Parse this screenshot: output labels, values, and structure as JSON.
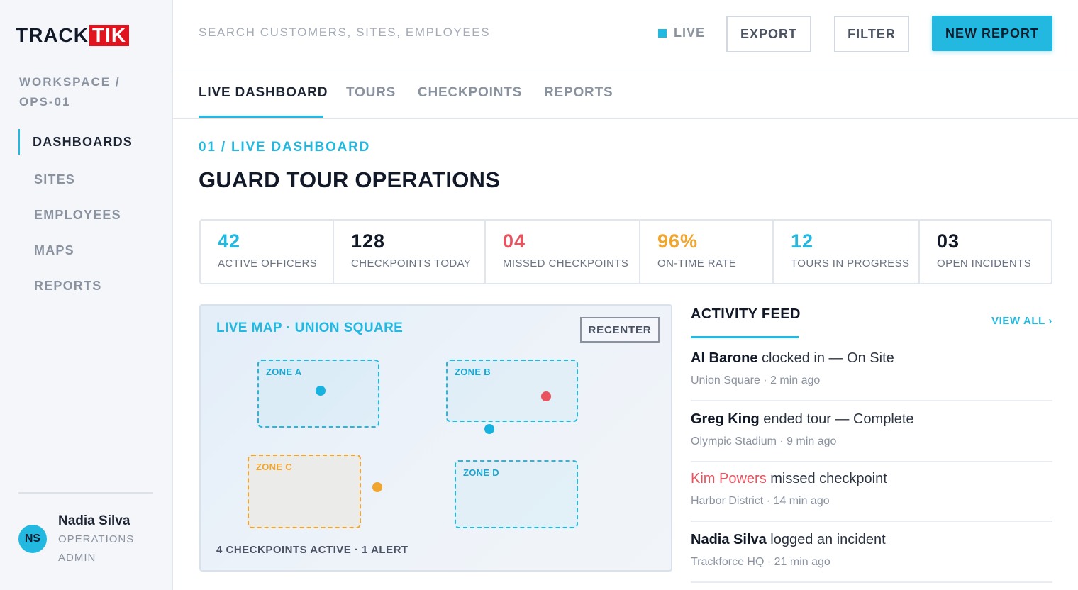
{
  "brand": {
    "logo_part1": "TRACK",
    "logo_part2": "TIK",
    "accent": "#22b8e0",
    "logo_red": "#e0141e"
  },
  "sidebar": {
    "workspace": "WORKSPACE / OPS-01",
    "items": [
      {
        "label": "DASHBOARDS",
        "active": true
      },
      {
        "label": "SITES"
      },
      {
        "label": "EMPLOYEES"
      },
      {
        "label": "MAPS"
      },
      {
        "label": "REPORTS"
      }
    ],
    "user": {
      "initials": "NS",
      "name": "Nadia Silva",
      "role": "OPERATIONS ADMIN"
    }
  },
  "topbar": {
    "search_placeholder": "SEARCH CUSTOMERS, SITES, EMPLOYEES",
    "live_label": "LIVE",
    "export_label": "EXPORT",
    "filter_label": "FILTER",
    "new_report_label": "NEW REPORT"
  },
  "tabs": [
    {
      "label": "LIVE DASHBOARD",
      "active": true
    },
    {
      "label": "TOURS"
    },
    {
      "label": "CHECKPOINTS"
    },
    {
      "label": "REPORTS"
    }
  ],
  "header": {
    "breadcrumb": "01 / LIVE DASHBOARD",
    "title": "GUARD TOUR OPERATIONS"
  },
  "stats": [
    {
      "value": "42",
      "label": "ACTIVE OFFICERS",
      "color": "#22b8e0"
    },
    {
      "value": "128",
      "label": "CHECKPOINTS TODAY",
      "color": "#111827"
    },
    {
      "value": "04",
      "label": "MISSED CHECKPOINTS",
      "color": "#e8535f"
    },
    {
      "value": "96%",
      "label": "ON-TIME RATE",
      "color": "#f0a52e"
    },
    {
      "value": "12",
      "label": "TOURS IN PROGRESS",
      "color": "#22b8e0"
    },
    {
      "value": "03",
      "label": "OPEN INCIDENTS",
      "color": "#111827"
    }
  ],
  "map": {
    "title": "LIVE MAP · UNION SQUARE",
    "recenter_label": "RECENTER",
    "zones": [
      {
        "label": "ZONE A"
      },
      {
        "label": "ZONE B"
      },
      {
        "label": "ZONE C",
        "status": "warning"
      },
      {
        "label": "ZONE D"
      }
    ],
    "pin_colors": {
      "normal": "#17b2e0",
      "alert": "#e8535f",
      "warning": "#f0a52e"
    },
    "footer": "4 CHECKPOINTS ACTIVE · 1 ALERT"
  },
  "feed": {
    "title": "ACTIVITY FEED",
    "view_all_label": "VIEW ALL ›",
    "items": [
      {
        "who": "Al Barone",
        "action": " clocked in — On Site",
        "meta": "Union Square · 2 min ago"
      },
      {
        "who": "Greg King",
        "action": " ended tour — Complete",
        "meta": "Olympic Stadium · 9 min ago"
      },
      {
        "who": "Kim Powers",
        "action": " missed checkpoint",
        "meta": "Harbor District · 14 min ago",
        "alert": true
      },
      {
        "who": "Nadia Silva",
        "action": " logged an incident",
        "meta": "Trackforce HQ · 21 min ago"
      }
    ]
  }
}
